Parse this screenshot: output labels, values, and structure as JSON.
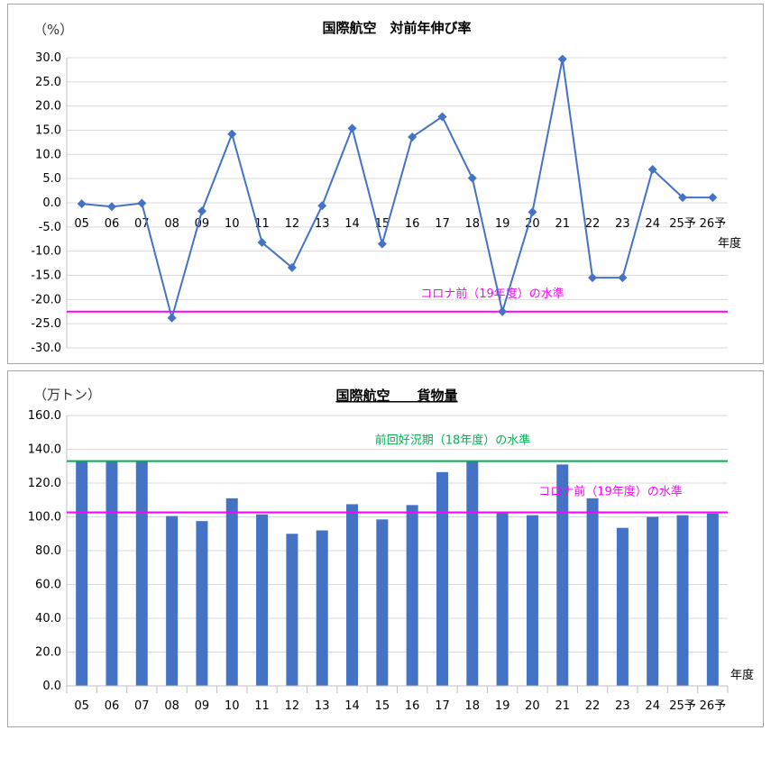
{
  "chart_data": [
    {
      "type": "line",
      "title": "国際航空　対前年伸び率",
      "unit_label": "（%）",
      "x_unit": "年度",
      "categories": [
        "05",
        "06",
        "07",
        "08",
        "09",
        "10",
        "11",
        "12",
        "13",
        "14",
        "15",
        "16",
        "17",
        "18",
        "19",
        "20",
        "21",
        "22",
        "23",
        "24",
        "25予",
        "26予"
      ],
      "series": [
        {
          "values": [
            -0.2,
            -0.8,
            -0.1,
            -23.8,
            -1.7,
            14.2,
            -8.2,
            -13.4,
            -0.6,
            15.4,
            -8.5,
            13.6,
            17.8,
            5.1,
            -22.5,
            -1.9,
            29.7,
            -15.5,
            -15.5,
            6.9,
            1.1,
            1.1
          ]
        }
      ],
      "ylim": [
        -30,
        30
      ],
      "yticks": [
        "30.0",
        "25.0",
        "20.0",
        "15.0",
        "10.0",
        "5.0",
        "0.0",
        "-5.0",
        "-10.0",
        "-15.0",
        "-20.0",
        "-25.0",
        "-30.0"
      ],
      "reference_lines": [
        {
          "label": "コロナ前（19年度）の水準",
          "value": -22.5,
          "color": "#FF00FF"
        }
      ],
      "line_color": "#4472C4",
      "grid": true
    },
    {
      "type": "bar",
      "title": "国際航空　　貨物量",
      "unit_label": "（万トン）",
      "x_unit": "年度",
      "categories": [
        "05",
        "06",
        "07",
        "08",
        "09",
        "10",
        "11",
        "12",
        "13",
        "14",
        "15",
        "16",
        "17",
        "18",
        "19",
        "20",
        "21",
        "22",
        "23",
        "24",
        "25予",
        "26予"
      ],
      "series": [
        {
          "values": [
            133,
            133,
            133,
            100.5,
            97.5,
            111,
            101.5,
            90,
            92,
            107.5,
            98.5,
            107,
            126.5,
            133,
            102.7,
            101,
            131,
            111,
            93.5,
            100,
            101,
            102
          ]
        }
      ],
      "ylim": [
        0,
        160
      ],
      "yticks": [
        "160.0",
        "140.0",
        "120.0",
        "100.0",
        "80.0",
        "60.0",
        "40.0",
        "20.0",
        "0.0"
      ],
      "reference_lines": [
        {
          "label": "前回好況期（18年度）の水準",
          "value": 133,
          "color": "#00B050"
        },
        {
          "label": "コロナ前（19年度）の水準",
          "value": 102.7,
          "color": "#FF00FF"
        }
      ],
      "bar_color": "#4472C4",
      "grid": true
    }
  ]
}
